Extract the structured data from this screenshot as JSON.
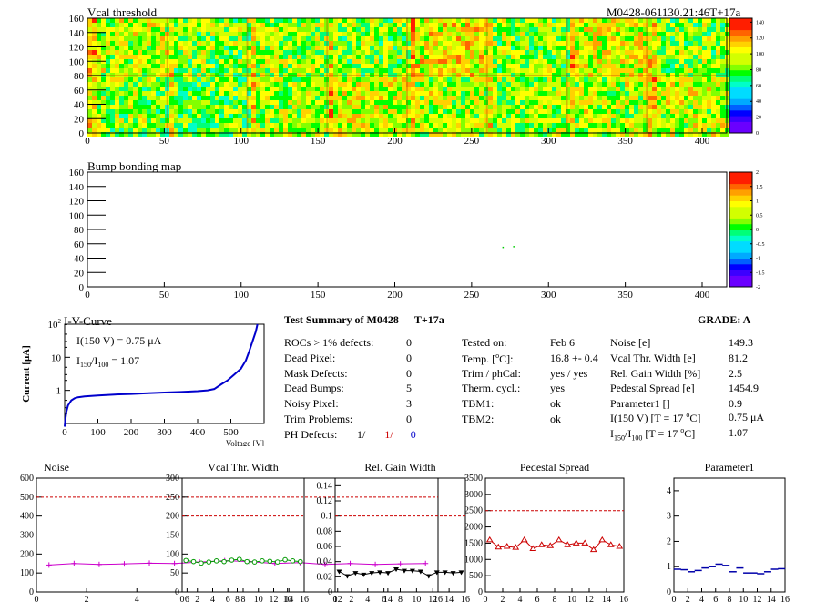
{
  "header": {
    "module_id": "M0428-061130.21:46T+17a"
  },
  "vcal_map": {
    "title": "Vcal threshold",
    "xlim": [
      0,
      416
    ],
    "ylim": [
      0,
      160
    ],
    "xticks": [
      "0",
      "50",
      "100",
      "150",
      "200",
      "250",
      "300",
      "350",
      "400"
    ],
    "yticks": [
      "0",
      "20",
      "40",
      "60",
      "80",
      "100",
      "120",
      "140",
      "160"
    ],
    "palette_ticks": [
      "0",
      "20",
      "40",
      "60",
      "80",
      "100",
      "120",
      "140"
    ],
    "palette_range": [
      0,
      145
    ]
  },
  "bump_map": {
    "title": "Bump bonding map",
    "xlim": [
      0,
      416
    ],
    "ylim": [
      0,
      160
    ],
    "xticks": [
      "0",
      "50",
      "100",
      "150",
      "200",
      "250",
      "300",
      "350",
      "400"
    ],
    "yticks": [
      "0",
      "20",
      "40",
      "60",
      "80",
      "100",
      "120",
      "140",
      "160"
    ],
    "palette_ticks": [
      "-2",
      "-1.5",
      "-1",
      "-0.5",
      "0",
      "0.5",
      "1",
      "1.5",
      "2"
    ],
    "palette_range": [
      -2,
      2
    ]
  },
  "iv_curve": {
    "title": "I-V-Curve",
    "ylabel": "Current [",
    "ylabel_unit": "μ",
    "ylabel_end": "A]",
    "xlabel": "Voltage [V]",
    "xticks": [
      "0",
      "100",
      "200",
      "300",
      "400",
      "500"
    ],
    "xlim": [
      0,
      600
    ],
    "yscale": "log",
    "ylim": [
      0.1,
      100
    ],
    "ytick_base": "10",
    "ytick_top_exp": "2",
    "ytick_labels": [
      "10",
      "1"
    ],
    "annotation_1": "I(150 V) = 0.75 μA",
    "annotation_2_a": "I",
    "annotation_2_sub1": "150",
    "annotation_2_b": "/I",
    "annotation_2_sub2": "100",
    "annotation_2_c": " =  1.07",
    "data": [
      [
        0,
        0.08
      ],
      [
        2,
        0.13
      ],
      [
        5,
        0.22
      ],
      [
        10,
        0.35
      ],
      [
        20,
        0.5
      ],
      [
        30,
        0.58
      ],
      [
        40,
        0.62
      ],
      [
        60,
        0.66
      ],
      [
        100,
        0.7
      ],
      [
        150,
        0.75
      ],
      [
        200,
        0.78
      ],
      [
        250,
        0.82
      ],
      [
        300,
        0.86
      ],
      [
        350,
        0.9
      ],
      [
        400,
        0.95
      ],
      [
        430,
        1.0
      ],
      [
        450,
        1.1
      ],
      [
        470,
        1.5
      ],
      [
        490,
        2.0
      ],
      [
        510,
        3.0
      ],
      [
        530,
        4.5
      ],
      [
        545,
        8.0
      ],
      [
        555,
        15.0
      ],
      [
        565,
        30.0
      ],
      [
        575,
        60.0
      ],
      [
        580,
        100.0
      ]
    ]
  },
  "summary": {
    "title": "Test Summary of M0428",
    "tag": "T+17a",
    "grade_label": "GRADE:  A",
    "rows": [
      {
        "label": "ROCs > 1% defects:",
        "value": "0"
      },
      {
        "label": "Dead Pixel:",
        "value": "0"
      },
      {
        "label": "Mask Defects:",
        "value": "0"
      },
      {
        "label": "Dead Bumps:",
        "value": "5"
      },
      {
        "label": "Noisy Pixel:",
        "value": "3"
      },
      {
        "label": "Trim Problems:",
        "value": "0"
      }
    ],
    "ph_label": "PH Defects:",
    "ph_values": [
      "1/",
      "1/",
      "0"
    ],
    "ph_colors": [
      "#000000",
      "#cc0000",
      "#0000cc"
    ],
    "mid_rows": [
      {
        "label": "Tested on:",
        "value": "Feb 6"
      },
      {
        "label": "Temp. [",
        "label_sup": "o",
        "label_end": "C]:",
        "value": "16.8 +- 0.4"
      },
      {
        "label": "Trim / phCal:",
        "value": "yes / yes"
      },
      {
        "label": "Therm. cycl.:",
        "value": "yes"
      },
      {
        "label": "TBM1:",
        "value": "ok"
      },
      {
        "label": "TBM2:",
        "value": "ok"
      }
    ],
    "right_rows": [
      {
        "label": "Noise [e]",
        "value": "149.3"
      },
      {
        "label": "Vcal Thr. Width [e]",
        "value": "81.2"
      },
      {
        "label": "Rel. Gain Width [%]",
        "value": "2.5"
      },
      {
        "label": "Pedestal Spread [e]",
        "value": "1454.9"
      },
      {
        "label": "Parameter1 []",
        "value": "0.9"
      }
    ],
    "iv_row_label_a": "I(150 V)  [T = 17 ",
    "iv_row_label_sup": "o",
    "iv_row_label_b": "C]",
    "iv_row_value": "0.75 μA",
    "ratio_row_a": "I",
    "ratio_row_sub1": "150",
    "ratio_row_b": "/I",
    "ratio_row_sub2": "100",
    "ratio_row_c": "  [T = 17 ",
    "ratio_row_sup": "o",
    "ratio_row_d": "C]",
    "ratio_row_value": "1.07"
  },
  "chart_data": [
    {
      "type": "scatter",
      "title": "Noise",
      "x": [
        0,
        1,
        2,
        3,
        4,
        5,
        6,
        7,
        8,
        9,
        10,
        11,
        12,
        13,
        14,
        15
      ],
      "values": [
        142,
        150,
        145,
        148,
        152,
        150,
        158,
        165,
        160,
        150,
        155,
        145,
        150,
        145,
        148,
        150
      ],
      "ylim": [
        0,
        600
      ],
      "yticks": [
        "0",
        "100",
        "200",
        "300",
        "400",
        "500",
        "600"
      ],
      "xticks": [
        "0",
        "2",
        "4",
        "6",
        "8",
        "10",
        "12",
        "14",
        "16"
      ],
      "limit": 500,
      "color": "#cc00cc",
      "marker": "cross"
    },
    {
      "type": "scatter",
      "title": "Vcal Thr. Width",
      "x": [
        0,
        1,
        2,
        3,
        4,
        5,
        6,
        7,
        8,
        9,
        10,
        11,
        12,
        13,
        14,
        15
      ],
      "values": [
        83,
        80,
        76,
        79,
        82,
        80,
        84,
        86,
        80,
        79,
        82,
        81,
        79,
        85,
        82,
        80
      ],
      "ylim": [
        0,
        300
      ],
      "yticks": [
        "0",
        "50",
        "100",
        "150",
        "200",
        "250",
        "300"
      ],
      "xticks": [
        "0",
        "2",
        "4",
        "6",
        "8",
        "10",
        "12",
        "14",
        "16"
      ],
      "limit": 200,
      "color": "#009900",
      "marker": "circle"
    },
    {
      "type": "scatter",
      "title": "Rel. Gain Width",
      "x": [
        0,
        1,
        2,
        3,
        4,
        5,
        6,
        7,
        8,
        9,
        10,
        11,
        12,
        13,
        14,
        15
      ],
      "values": [
        0.027,
        0.021,
        0.025,
        0.023,
        0.025,
        0.026,
        0.025,
        0.03,
        0.028,
        0.028,
        0.027,
        0.021,
        0.026,
        0.026,
        0.025,
        0.026
      ],
      "ylim": [
        0,
        0.15
      ],
      "yticks": [
        "0",
        "0.02",
        "0.04",
        "0.06",
        "0.08",
        "0.1",
        "0.12",
        "0.14"
      ],
      "xticks": [
        "0",
        "2",
        "4",
        "6",
        "8",
        "10",
        "12",
        "14",
        "16"
      ],
      "limit": 0.1,
      "color": "#000000",
      "marker": "triangle-down"
    },
    {
      "type": "scatter",
      "title": "Pedestal Spread",
      "x": [
        0,
        1,
        2,
        3,
        4,
        5,
        6,
        7,
        8,
        9,
        10,
        11,
        12,
        13,
        14,
        15
      ],
      "values": [
        1600,
        1380,
        1400,
        1370,
        1600,
        1330,
        1450,
        1420,
        1600,
        1450,
        1500,
        1500,
        1300,
        1600,
        1450,
        1400
      ],
      "ylim": [
        0,
        3500
      ],
      "yticks": [
        "0",
        "500",
        "1000",
        "1500",
        "2000",
        "2500",
        "3000",
        "3500"
      ],
      "xticks": [
        "0",
        "2",
        "4",
        "6",
        "8",
        "10",
        "12",
        "14",
        "16"
      ],
      "limit": 2500,
      "color": "#cc0000",
      "marker": "triangle-up"
    },
    {
      "type": "scatter",
      "title": "Parameter1",
      "x": [
        0,
        1,
        2,
        3,
        4,
        5,
        6,
        7,
        8,
        9,
        10,
        11,
        12,
        13,
        14,
        15
      ],
      "values": [
        0.9,
        0.88,
        0.8,
        0.85,
        0.95,
        1.0,
        1.1,
        1.05,
        0.8,
        0.95,
        0.75,
        0.75,
        0.72,
        0.8,
        0.9,
        0.92
      ],
      "ylim": [
        0,
        4.5
      ],
      "yticks": [
        "0",
        "1",
        "2",
        "3",
        "4"
      ],
      "xticks": [
        "0",
        "2",
        "4",
        "6",
        "8",
        "10",
        "12",
        "14",
        "16"
      ],
      "limit": null,
      "color": "#0000aa",
      "marker": "dash"
    }
  ]
}
